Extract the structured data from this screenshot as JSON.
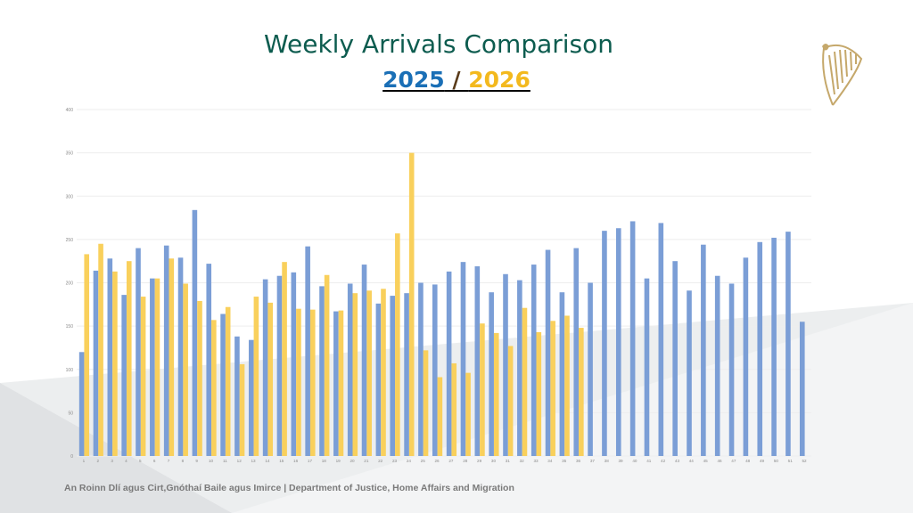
{
  "header": {
    "title": "Weekly Arrivals Comparison",
    "year_a": "2025",
    "separator": " / ",
    "year_b": "2026"
  },
  "logo": {
    "icon": "harp-icon",
    "color": "#c5a86b"
  },
  "footer": {
    "text": "An Roinn Dlí agus Cirt,Gnóthaí Baile agus Imirce | Department of Justice, Home Affairs and Migration"
  },
  "colors": {
    "series_a": "#7b9ed6",
    "series_b": "#f9d05c",
    "title": "#0d5c4f",
    "year_a": "#1a6fb6",
    "year_b": "#f3b91e"
  },
  "chart_data": {
    "type": "bar",
    "title": "",
    "xlabel": "",
    "ylabel": "",
    "ylim": [
      0,
      400
    ],
    "yticks": [
      0,
      50,
      100,
      150,
      200,
      250,
      300,
      350,
      400
    ],
    "grid": true,
    "legend": "none",
    "categories": [
      "1",
      "2",
      "3",
      "4",
      "5",
      "6",
      "7",
      "8",
      "9",
      "10",
      "11",
      "12",
      "13",
      "14",
      "15",
      "16",
      "17",
      "18",
      "19",
      "20",
      "21",
      "22",
      "23",
      "24",
      "25",
      "26",
      "27",
      "28",
      "29",
      "30",
      "31",
      "32",
      "33",
      "34",
      "35",
      "36",
      "37",
      "38",
      "39",
      "40",
      "41",
      "42",
      "43",
      "44",
      "45",
      "46",
      "47",
      "48",
      "49",
      "50",
      "51",
      "52"
    ],
    "series": [
      {
        "values": [
          120,
          214,
          228,
          186,
          240,
          205,
          243,
          229,
          284,
          222,
          164,
          138,
          134,
          204,
          208,
          212,
          242,
          196,
          167,
          199,
          221,
          176,
          185,
          188,
          200,
          198,
          213,
          224,
          219,
          189,
          210,
          203,
          221,
          238,
          189,
          240,
          200,
          260,
          263,
          271,
          205,
          269,
          225,
          191,
          244,
          208,
          199,
          229,
          247,
          252,
          259,
          155
        ]
      },
      {
        "values": [
          233,
          245,
          213,
          225,
          184,
          205,
          228,
          199,
          179,
          157,
          172,
          106,
          184,
          177,
          224,
          170,
          169,
          209,
          168,
          188,
          191,
          193,
          257,
          350,
          122,
          91,
          107,
          96,
          153,
          142,
          127,
          171,
          143,
          156,
          162,
          148,
          null,
          null,
          null,
          null,
          null,
          null,
          null,
          null,
          null,
          null,
          null,
          null,
          null,
          null,
          null,
          null
        ]
      }
    ]
  }
}
